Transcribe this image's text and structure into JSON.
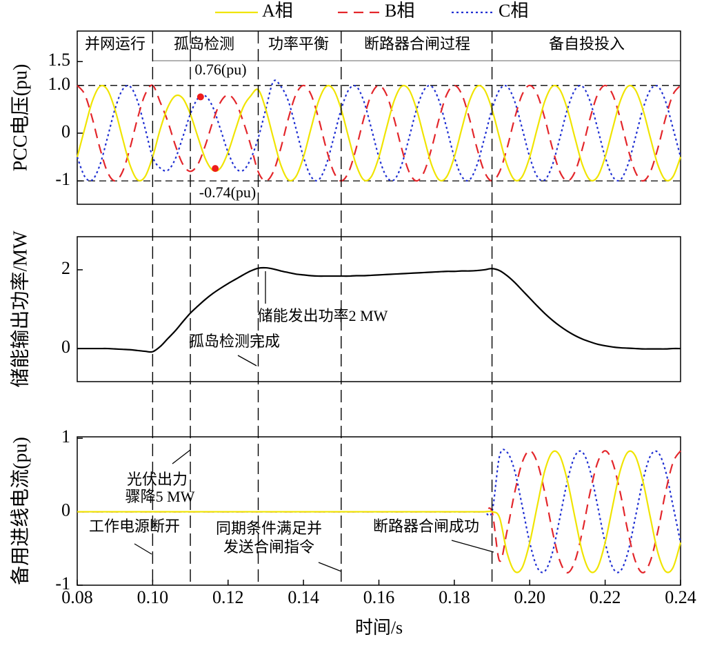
{
  "chart_data": [
    {
      "type": "line",
      "ylabel": "PCC电压(pu)",
      "legend": true,
      "xlim": [
        0.08,
        0.24
      ],
      "ylim": [
        -1.49,
        2.14
      ],
      "yticks": [
        -1,
        0,
        {
          "value": 1,
          "label": "1.0"
        },
        1.5
      ],
      "stages": [
        "并网运行",
        "孤岛检测",
        "功率平衡",
        "断路器合闸过程",
        "备自投投入"
      ],
      "hlines": [
        1,
        -1
      ],
      "vlines": [
        0.1,
        0.11,
        0.128,
        0.15,
        0.19
      ],
      "markers": [
        {
          "x": 0.1127,
          "y": 0.76,
          "label": "0.76(pu)"
        },
        {
          "x": 0.1166,
          "y": -0.74,
          "label": "-0.74(pu)"
        }
      ],
      "x": [
        0.08,
        0.082,
        0.084,
        0.086,
        0.088,
        0.09,
        0.092,
        0.094,
        0.096,
        0.098,
        0.1,
        0.102,
        0.104,
        0.106,
        0.108,
        0.11,
        0.112,
        0.114,
        0.116,
        0.118,
        0.12,
        0.122,
        0.124,
        0.126,
        0.128,
        0.13,
        0.132,
        0.134,
        0.136,
        0.138,
        0.14,
        0.142,
        0.144,
        0.146,
        0.148,
        0.15,
        0.152,
        0.154,
        0.156,
        0.158,
        0.16,
        0.162,
        0.164,
        0.166,
        0.168,
        0.17,
        0.172,
        0.174,
        0.176,
        0.178,
        0.18,
        0.182,
        0.184,
        0.186,
        0.188,
        0.19,
        0.192,
        0.194,
        0.196,
        0.198,
        0.2,
        0.202,
        0.204,
        0.206,
        0.208,
        0.21,
        0.212,
        0.214,
        0.216,
        0.218,
        0.22,
        0.222,
        0.224,
        0.226,
        0.228,
        0.23,
        0.232,
        0.234,
        0.236,
        0.238,
        0.24
      ],
      "series": [
        {
          "name": "A相",
          "color": "#f0e400",
          "style": "solid",
          "values": [
            -0.5,
            0.1,
            0.67,
            0.98,
            0.91,
            0.5,
            -0.1,
            -0.67,
            -0.98,
            -0.91,
            -0.5,
            0.08,
            0.54,
            0.78,
            0.73,
            0.4,
            -0.08,
            -0.54,
            -0.78,
            -0.73,
            -0.4,
            0.08,
            0.54,
            0.78,
            0.91,
            0.5,
            -0.1,
            -0.67,
            -0.98,
            -0.91,
            -0.5,
            0.1,
            0.67,
            0.98,
            0.91,
            0.5,
            -0.1,
            -0.67,
            -0.98,
            -0.91,
            -0.5,
            0.1,
            0.67,
            0.98,
            0.91,
            0.5,
            -0.1,
            -0.67,
            -0.98,
            -0.91,
            -0.5,
            0.1,
            0.67,
            0.98,
            0.91,
            0.5,
            -0.1,
            -0.67,
            -0.98,
            -0.91,
            -0.5,
            0.1,
            0.67,
            0.98,
            0.91,
            0.5,
            -0.1,
            -0.67,
            -0.98,
            -0.91,
            -0.5,
            0.1,
            0.67,
            0.98,
            0.91,
            0.5,
            -0.1,
            -0.67,
            -0.98,
            -0.91,
            -0.5
          ]
        },
        {
          "name": "B相",
          "color": "#e3262b",
          "style": "dashed",
          "values": [
            1,
            0.81,
            0.31,
            -0.31,
            -0.81,
            -1,
            -0.81,
            -0.31,
            0.31,
            0.81,
            1,
            0.65,
            0.25,
            -0.25,
            -0.65,
            -0.8,
            -0.65,
            -0.25,
            0.25,
            0.65,
            0.8,
            0.65,
            0.25,
            -0.25,
            -0.81,
            -1,
            -0.81,
            -0.31,
            0.31,
            0.81,
            1,
            0.81,
            0.31,
            -0.31,
            -0.81,
            -1,
            -0.81,
            -0.31,
            0.31,
            0.81,
            1,
            0.81,
            0.31,
            -0.31,
            -0.81,
            -1,
            -0.81,
            -0.31,
            0.31,
            0.81,
            1,
            0.81,
            0.31,
            -0.31,
            -0.81,
            -1,
            -0.81,
            -0.31,
            0.31,
            0.81,
            1,
            0.81,
            0.31,
            -0.31,
            -0.81,
            -1,
            -0.81,
            -0.31,
            0.31,
            0.81,
            1,
            0.81,
            0.31,
            -0.31,
            -0.81,
            -1,
            -0.81,
            -0.31,
            0.31,
            0.81,
            1
          ]
        },
        {
          "name": "C相",
          "color": "#1f2fd2",
          "style": "dotted",
          "values": [
            -0.5,
            -0.91,
            -0.98,
            -0.67,
            -0.1,
            0.5,
            0.91,
            0.98,
            0.67,
            0.1,
            -0.5,
            -0.73,
            -0.78,
            -0.54,
            -0.08,
            0.4,
            0.73,
            0.78,
            0.54,
            0.08,
            -0.4,
            -0.73,
            -0.78,
            -0.54,
            -0.1,
            0.5,
            1.08,
            0.98,
            0.67,
            0.1,
            -0.5,
            -0.91,
            -0.98,
            -0.67,
            -0.1,
            0.5,
            0.91,
            0.98,
            0.67,
            0.1,
            -0.5,
            -0.91,
            -0.98,
            -0.67,
            -0.1,
            0.5,
            0.91,
            0.98,
            0.67,
            0.1,
            -0.5,
            -0.91,
            -0.98,
            -0.67,
            -0.1,
            0.5,
            0.91,
            0.98,
            0.67,
            0.1,
            -0.5,
            -0.91,
            -0.98,
            -0.67,
            -0.1,
            0.5,
            0.91,
            0.98,
            0.67,
            0.1,
            -0.5,
            -0.91,
            -0.98,
            -0.67,
            -0.1,
            0.5,
            0.91,
            0.98,
            0.67,
            0.1,
            -0.5
          ]
        }
      ]
    },
    {
      "type": "line",
      "ylabel": "储能输出功率/MW",
      "xlim": [
        0.08,
        0.24
      ],
      "ylim": [
        -0.84,
        2.84
      ],
      "yticks": [
        0,
        2
      ],
      "annotations": [
        "储能发出功率2 MW",
        "孤岛检测完成"
      ],
      "x": [
        0.08,
        0.082,
        0.084,
        0.086,
        0.088,
        0.09,
        0.092,
        0.094,
        0.096,
        0.098,
        0.1,
        0.102,
        0.104,
        0.106,
        0.108,
        0.11,
        0.112,
        0.114,
        0.116,
        0.118,
        0.12,
        0.122,
        0.124,
        0.126,
        0.128,
        0.13,
        0.132,
        0.134,
        0.136,
        0.138,
        0.14,
        0.142,
        0.144,
        0.146,
        0.148,
        0.15,
        0.152,
        0.154,
        0.156,
        0.158,
        0.16,
        0.162,
        0.164,
        0.166,
        0.168,
        0.17,
        0.172,
        0.174,
        0.176,
        0.178,
        0.18,
        0.182,
        0.184,
        0.186,
        0.188,
        0.19,
        0.192,
        0.194,
        0.196,
        0.198,
        0.2,
        0.202,
        0.204,
        0.206,
        0.208,
        0.21,
        0.212,
        0.214,
        0.216,
        0.218,
        0.22,
        0.222,
        0.224,
        0.226,
        0.228,
        0.23,
        0.232,
        0.234,
        0.236,
        0.238,
        0.24
      ],
      "series": [
        {
          "color": "#000000",
          "style": "solid",
          "values": [
            0,
            0,
            0,
            0,
            0,
            -0.01,
            -0.02,
            -0.03,
            -0.05,
            -0.07,
            -0.08,
            0.05,
            0.25,
            0.45,
            0.68,
            0.9,
            1.08,
            1.25,
            1.4,
            1.53,
            1.65,
            1.76,
            1.87,
            1.97,
            2.04,
            2.05,
            2.02,
            1.97,
            1.93,
            1.89,
            1.87,
            1.85,
            1.84,
            1.84,
            1.84,
            1.84,
            1.84,
            1.85,
            1.85,
            1.86,
            1.87,
            1.88,
            1.89,
            1.9,
            1.91,
            1.92,
            1.93,
            1.94,
            1.95,
            1.96,
            1.96,
            1.97,
            1.97,
            1.98,
            2.0,
            2.03,
            1.98,
            1.85,
            1.68,
            1.48,
            1.28,
            1.08,
            0.89,
            0.72,
            0.57,
            0.44,
            0.33,
            0.24,
            0.17,
            0.11,
            0.07,
            0.04,
            0.02,
            0.01,
            0,
            -0.01,
            -0.01,
            -0.01,
            -0.01,
            0,
            0
          ]
        }
      ]
    },
    {
      "type": "line",
      "ylabel": "备用进线电流(pu)",
      "xlabel": "时间/s",
      "xlim": [
        0.08,
        0.24
      ],
      "ylim": [
        -1,
        1.02
      ],
      "yticks": [
        -1,
        0,
        1
      ],
      "xticks": [
        0.08,
        {
          "value": 0.1,
          "label": "0.10"
        },
        0.12,
        0.14,
        0.16,
        0.18,
        {
          "value": 0.2,
          "label": "0.20"
        },
        0.22,
        0.24
      ],
      "annotations": [
        "光伏出力",
        "骤降5 MW",
        "工作电源断开",
        "同期条件满足并",
        "发送合闸指令",
        "断路器合闸成功"
      ],
      "x": [
        0.08,
        0.082,
        0.084,
        0.086,
        0.088,
        0.09,
        0.092,
        0.094,
        0.096,
        0.098,
        0.1,
        0.102,
        0.104,
        0.106,
        0.108,
        0.11,
        0.112,
        0.114,
        0.116,
        0.118,
        0.12,
        0.122,
        0.124,
        0.126,
        0.128,
        0.13,
        0.132,
        0.134,
        0.136,
        0.138,
        0.14,
        0.142,
        0.144,
        0.146,
        0.148,
        0.15,
        0.152,
        0.154,
        0.156,
        0.158,
        0.16,
        0.162,
        0.164,
        0.166,
        0.168,
        0.17,
        0.172,
        0.174,
        0.176,
        0.178,
        0.18,
        0.182,
        0.184,
        0.186,
        0.188,
        0.19,
        0.192,
        0.194,
        0.196,
        0.198,
        0.2,
        0.202,
        0.204,
        0.206,
        0.208,
        0.21,
        0.212,
        0.214,
        0.216,
        0.218,
        0.22,
        0.222,
        0.224,
        0.226,
        0.228,
        0.23,
        0.232,
        0.234,
        0.236,
        0.238,
        0.24
      ],
      "series": [
        {
          "color": "#f0e400",
          "style": "solid",
          "values": [
            0,
            0,
            0,
            0,
            0,
            0,
            0,
            0,
            0,
            0,
            0,
            0,
            0,
            0,
            0,
            0,
            0,
            0,
            0,
            0,
            0,
            0,
            0,
            0,
            0,
            0,
            0,
            0,
            0,
            0,
            0,
            0,
            0,
            0,
            0,
            0,
            0,
            0,
            0,
            0,
            0,
            0,
            0,
            0,
            0,
            0,
            0,
            0,
            0,
            0,
            0,
            0,
            0,
            0,
            0,
            0,
            -0.08,
            -0.56,
            -0.81,
            -0.76,
            -0.42,
            0.08,
            0.56,
            0.81,
            0.76,
            0.42,
            -0.08,
            -0.56,
            -0.81,
            -0.76,
            -0.42,
            0.08,
            0.56,
            0.81,
            0.76,
            0.42,
            -0.08,
            -0.56,
            -0.81,
            -0.76,
            -0.42
          ]
        },
        {
          "color": "#e3262b",
          "style": "dashed",
          "values": [
            0,
            0,
            0,
            0,
            0,
            0,
            0,
            0,
            0,
            0,
            0,
            0,
            0,
            0,
            0,
            0,
            0,
            0,
            0,
            0,
            0,
            0,
            0,
            0,
            0,
            0,
            0,
            0,
            0,
            0,
            0,
            0,
            0,
            0,
            0,
            0,
            0,
            0,
            0,
            0,
            0,
            0,
            0,
            0,
            0,
            0,
            0,
            0,
            0,
            0,
            0,
            0,
            0,
            0,
            0,
            0,
            -0.67,
            -0.26,
            0.26,
            0.67,
            0.83,
            0.67,
            0.26,
            -0.26,
            -0.67,
            -0.83,
            -0.67,
            -0.26,
            0.26,
            0.67,
            0.83,
            0.67,
            0.26,
            -0.26,
            -0.67,
            -0.83,
            -0.67,
            -0.26,
            0.26,
            0.67,
            0.83
          ]
        },
        {
          "color": "#1f2fd2",
          "style": "dotted",
          "values": [
            0,
            0,
            0,
            0,
            0,
            0,
            0,
            0,
            0,
            0,
            0,
            0,
            0,
            0,
            0,
            0,
            0,
            0,
            0,
            0,
            0,
            0,
            0,
            0,
            0,
            0,
            0,
            0,
            0,
            0,
            0,
            0,
            0,
            0,
            0,
            0,
            0,
            0,
            0,
            0,
            0,
            0,
            0,
            0,
            0,
            0,
            0,
            0,
            0,
            0,
            0,
            0,
            0,
            0,
            0,
            0,
            0.76,
            0.81,
            0.56,
            0.08,
            -0.42,
            -0.76,
            -0.81,
            -0.56,
            -0.08,
            0.42,
            0.76,
            0.81,
            0.56,
            0.08,
            -0.42,
            -0.76,
            -0.81,
            -0.56,
            -0.08,
            0.42,
            0.76,
            0.81,
            0.56,
            0.08,
            -0.42
          ]
        }
      ]
    }
  ]
}
